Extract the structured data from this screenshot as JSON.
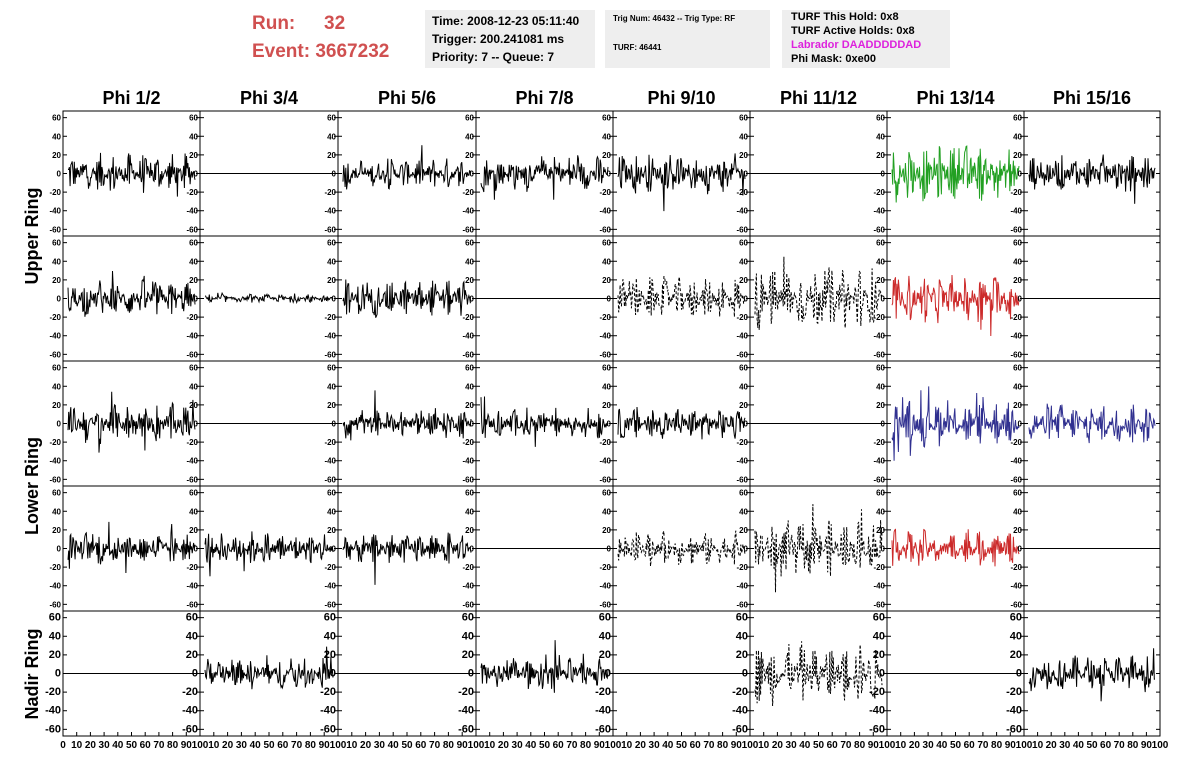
{
  "header": {
    "run_label": "Run:",
    "run_value": "32",
    "event_label": "Event:",
    "event_value": "3667232",
    "time": "Time: 2008-12-23 05:11:40",
    "trigger": "Trigger: 200.241081 ms",
    "priority": "Priority: 7 -- Queue: 7",
    "trig_num": "Trig Num: 46432 -- Trig Type: RF",
    "turf": "TURF: 46441",
    "turf_hold": "TURF This Hold: 0x8",
    "turf_active": "TURF Active Holds: 0x8",
    "labrador": "Labrador DAADDDDDAD",
    "phi_mask": "Phi Mask: 0xe00"
  },
  "colors": {
    "run_text": "#d05050",
    "labrador_text": "#dd22dd",
    "black": "#000000",
    "green": "#22a022",
    "red": "#cc2a2a",
    "blue": "#303090",
    "info_bg": "#eeeeee"
  },
  "chart_data": {
    "type": "line",
    "columns": [
      "Phi 1/2",
      "Phi 3/4",
      "Phi 5/6",
      "Phi 7/8",
      "Phi 9/10",
      "Phi 11/12",
      "Phi 13/14",
      "Phi 15/16"
    ],
    "row_labels": [
      "Upper Ring",
      "Lower Ring",
      "Nadir Ring"
    ],
    "ylim": [
      -65,
      65
    ],
    "xlim": [
      0,
      100
    ],
    "yticks": [
      -60,
      -40,
      -20,
      0,
      20,
      40,
      60
    ],
    "xticks": [
      0,
      10,
      20,
      30,
      40,
      50,
      60,
      70,
      80,
      90,
      100
    ],
    "panels": [
      [
        {
          "style": "solid",
          "color": "black",
          "amp": 14
        },
        {
          "style": "flat",
          "color": "black",
          "amp": 0
        },
        {
          "style": "solid",
          "color": "black",
          "amp": 11
        },
        {
          "style": "solid",
          "color": "black",
          "amp": 13
        },
        {
          "style": "solid",
          "color": "black",
          "amp": 14
        },
        {
          "style": "flat",
          "color": "black",
          "amp": 0
        },
        {
          "style": "solid",
          "color": "green",
          "amp": 20
        },
        {
          "style": "solid",
          "color": "black",
          "amp": 13
        }
      ],
      [
        {
          "style": "solid",
          "color": "black",
          "amp": 13
        },
        {
          "style": "solid",
          "color": "black",
          "amp": 3
        },
        {
          "style": "solid",
          "color": "black",
          "amp": 13
        },
        {
          "style": "flat",
          "color": "black",
          "amp": 0
        },
        {
          "style": "dashed",
          "color": "black",
          "amp": 15
        },
        {
          "style": "dashed",
          "color": "black",
          "amp": 22
        },
        {
          "style": "solid",
          "color": "red",
          "amp": 17
        },
        {
          "style": "flat",
          "color": "black",
          "amp": 0
        }
      ],
      [
        {
          "style": "solid",
          "color": "black",
          "amp": 14
        },
        {
          "style": "flat",
          "color": "black",
          "amp": 0
        },
        {
          "style": "solid",
          "color": "black",
          "amp": 11
        },
        {
          "style": "solid",
          "color": "black",
          "amp": 11
        },
        {
          "style": "solid",
          "color": "black",
          "amp": 12
        },
        {
          "style": "flat",
          "color": "black",
          "amp": 0
        },
        {
          "style": "solid",
          "color": "blue",
          "amp": 16
        },
        {
          "style": "solid",
          "color": "blue",
          "amp": 14
        }
      ],
      [
        {
          "style": "solid",
          "color": "black",
          "amp": 12
        },
        {
          "style": "solid",
          "color": "black",
          "amp": 12
        },
        {
          "style": "solid",
          "color": "black",
          "amp": 12
        },
        {
          "style": "flat",
          "color": "black",
          "amp": 0
        },
        {
          "style": "dashed",
          "color": "black",
          "amp": 12
        },
        {
          "style": "dashed",
          "color": "black",
          "amp": 20
        },
        {
          "style": "solid",
          "color": "red",
          "amp": 13
        },
        {
          "style": "flat",
          "color": "black",
          "amp": 0
        }
      ],
      [
        {
          "style": "flat",
          "color": "black",
          "amp": 0
        },
        {
          "style": "solid",
          "color": "black",
          "amp": 11
        },
        {
          "style": "flat",
          "color": "black",
          "amp": 0
        },
        {
          "style": "solid",
          "color": "black",
          "amp": 11
        },
        {
          "style": "flat",
          "color": "black",
          "amp": 0
        },
        {
          "style": "dashed",
          "color": "black",
          "amp": 22
        },
        {
          "style": "flat",
          "color": "black",
          "amp": 0
        },
        {
          "style": "solid",
          "color": "black",
          "amp": 13
        }
      ]
    ]
  }
}
